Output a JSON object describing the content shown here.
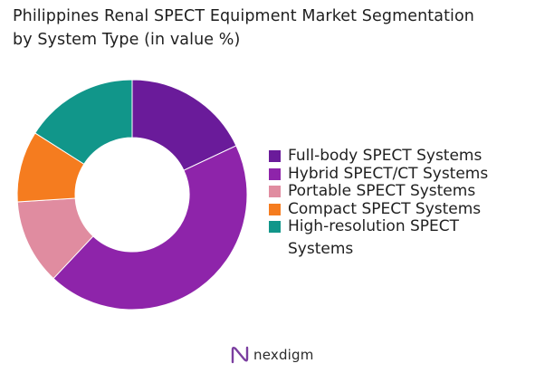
{
  "title": {
    "line1": "Philippines Renal SPECT Equipment Market Segmentation",
    "line2": "by System Type (in value %)"
  },
  "chart_data": {
    "type": "pie",
    "donut": true,
    "categories": [
      "Full-body SPECT Systems",
      "Hybrid SPECT/CT Systems",
      "Portable SPECT Systems",
      "Compact SPECT Systems",
      "High-resolution SPECT Systems"
    ],
    "values": [
      18,
      44,
      12,
      10,
      16
    ],
    "colors": [
      "#6a1b9a",
      "#8e24aa",
      "#e08ca0",
      "#f57c1f",
      "#11968a"
    ],
    "legend_position": "right"
  },
  "footer": {
    "brand": "nexdigm",
    "logo_icon": "nexdigm-logo-icon"
  }
}
